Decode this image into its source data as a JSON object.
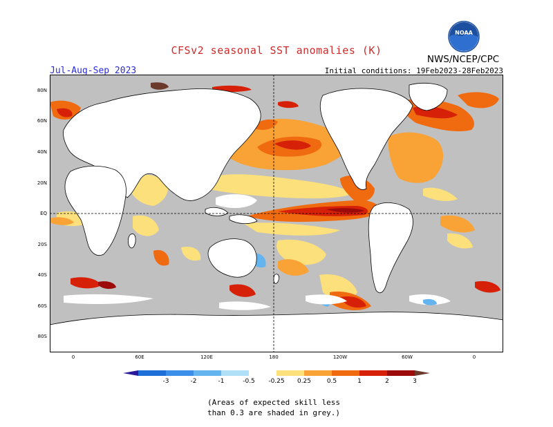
{
  "header": {
    "title": "CFSv2 seasonal SST anomalies (K)",
    "season": "Jul-Aug-Sep 2023",
    "initial_conditions": "Initial conditions: 19Feb2023-28Feb2023",
    "agency": "NWS/NCEP/CPC",
    "logo_text": "NOAA"
  },
  "map": {
    "lat_ticks": [
      "80N",
      "60N",
      "40N",
      "20N",
      "EQ",
      "20S",
      "40S",
      "60S",
      "80S"
    ],
    "lon_ticks": [
      "0",
      "60E",
      "120E",
      "180",
      "120W",
      "60W",
      "0"
    ],
    "colors": {
      "ocean_grey": "#c0c0c0",
      "land": "#ffffff",
      "coast": "#000000"
    }
  },
  "colorbar": {
    "labels": [
      "-3",
      "-2",
      "-1",
      "-0.5",
      "-0.25",
      "0.25",
      "0.5",
      "1",
      "2",
      "3"
    ],
    "colors": [
      "#2a1a9c",
      "#1f6fd8",
      "#3b8fe8",
      "#64b4f0",
      "#b0e0f8",
      "#ffffff",
      "#fce07c",
      "#f9a235",
      "#f06a10",
      "#d62008",
      "#9c0a0a",
      "#6b3a2c"
    ]
  },
  "note": {
    "line1": "(Areas of expected skill less",
    "line2": "than 0.3 are shaded in grey.)"
  }
}
